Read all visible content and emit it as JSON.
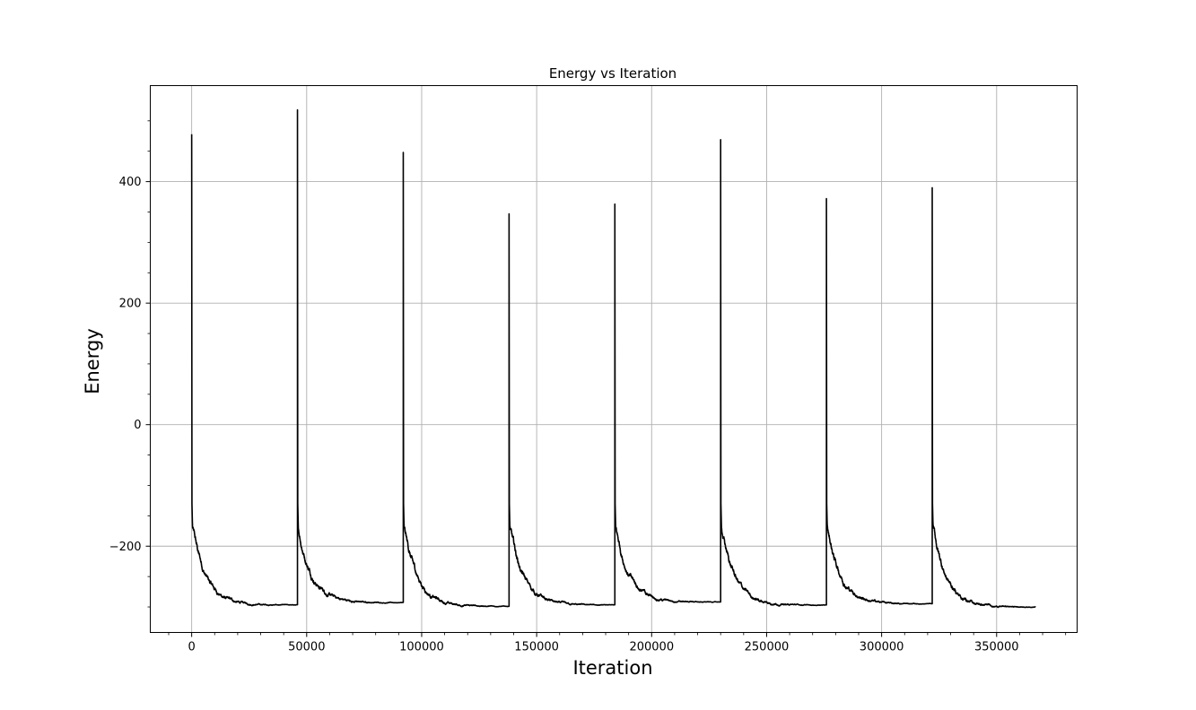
{
  "chart_data": {
    "type": "line",
    "title": "Energy vs Iteration",
    "xlabel": "Iteration",
    "ylabel": "Energy",
    "xlim": [
      -18000,
      385000
    ],
    "ylim": [
      -342,
      558
    ],
    "x_ticks": [
      0,
      50000,
      100000,
      150000,
      200000,
      250000,
      300000,
      350000
    ],
    "x_tick_labels": [
      "0",
      "50000",
      "100000",
      "150000",
      "200000",
      "250000",
      "300000",
      "350000"
    ],
    "y_ticks": [
      -200,
      0,
      200,
      400
    ],
    "y_tick_labels": [
      "−200",
      "0",
      "200",
      "400"
    ],
    "grid": true,
    "legend": "none",
    "line_color": "#000000",
    "series": [
      {
        "cycles": [
          {
            "start": 0,
            "end": 46000,
            "peak": 478,
            "final": -297
          },
          {
            "start": 46000,
            "end": 92000,
            "peak": 518,
            "final": -293
          },
          {
            "start": 92000,
            "end": 138000,
            "peak": 448,
            "final": -299
          },
          {
            "start": 138000,
            "end": 184000,
            "peak": 347,
            "final": -297
          },
          {
            "start": 184000,
            "end": 230000,
            "peak": 363,
            "final": -292
          },
          {
            "start": 230000,
            "end": 276000,
            "peak": 469,
            "final": -297
          },
          {
            "start": 276000,
            "end": 322000,
            "peak": 372,
            "final": -295
          },
          {
            "start": 322000,
            "end": 367000,
            "peak": 390,
            "final": -300
          }
        ]
      }
    ]
  }
}
